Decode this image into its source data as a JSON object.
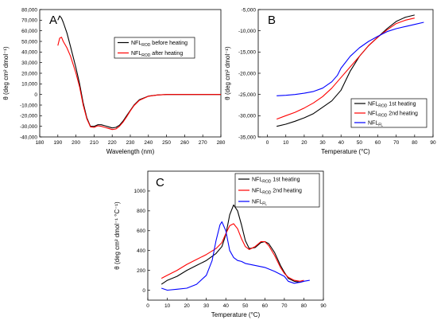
{
  "chart_data": [
    {
      "panel": "A",
      "type": "line",
      "xlabel": "Wavelength (nm)",
      "ylabel": "θ (deg cm² dmol⁻¹)",
      "xlim": [
        180,
        280
      ],
      "ylim": [
        -40000,
        80000
      ],
      "xticks": [
        180,
        190,
        200,
        210,
        220,
        230,
        240,
        250,
        260,
        270,
        280
      ],
      "yticks": [
        -40000,
        -30000,
        -20000,
        -10000,
        0,
        10000,
        20000,
        30000,
        40000,
        50000,
        60000,
        70000,
        80000
      ],
      "ytick_labels": [
        "-40,000",
        "-30,000",
        "-20,000",
        "-10,000",
        "0",
        "10,000",
        "20,000",
        "30,000",
        "40,000",
        "50,000",
        "60,000",
        "70,000",
        "80,000"
      ],
      "legend_position": "top-right",
      "series": [
        {
          "name": "NFL_ROD before heating",
          "label_main": "NFL",
          "label_sub": "ROD",
          "label_suffix": " before heating",
          "color": "#000000",
          "x": [
            190,
            191,
            192,
            193,
            195,
            197,
            200,
            202,
            204,
            206,
            208,
            210,
            212,
            214,
            216,
            218,
            220,
            222,
            224,
            226,
            228,
            230,
            232,
            235,
            240,
            245,
            250,
            260,
            270,
            280
          ],
          "y": [
            70000,
            74000,
            72000,
            68000,
            58000,
            45000,
            25000,
            10000,
            -8000,
            -22000,
            -30000,
            -30000,
            -28500,
            -28500,
            -29500,
            -30500,
            -31500,
            -31000,
            -29000,
            -25000,
            -20000,
            -15000,
            -10000,
            -5000,
            -1500,
            -500,
            0,
            0,
            0,
            0
          ]
        },
        {
          "name": "NFL_ROD after heating",
          "label_main": "NFL",
          "label_sub": "ROD",
          "label_suffix": " after heating",
          "color": "#ff0000",
          "x": [
            190,
            191,
            192,
            193,
            195,
            197,
            200,
            202,
            204,
            206,
            208,
            210,
            212,
            214,
            216,
            218,
            220,
            222,
            224,
            226,
            228,
            230,
            232,
            235,
            240,
            245,
            250,
            260,
            270,
            280
          ],
          "y": [
            46000,
            53000,
            54000,
            50000,
            44000,
            36000,
            20000,
            7000,
            -10000,
            -23000,
            -30500,
            -31000,
            -29500,
            -30000,
            -31000,
            -32000,
            -33000,
            -32500,
            -30000,
            -26000,
            -21000,
            -15500,
            -10500,
            -5500,
            -1700,
            -500,
            0,
            0,
            0,
            0
          ]
        }
      ]
    },
    {
      "panel": "B",
      "type": "line",
      "xlabel": "Temperature (°C)",
      "ylabel": "θ (deg cm² dmol⁻¹)",
      "xlim": [
        -5,
        90
      ],
      "ylim": [
        -35000,
        -5000
      ],
      "xticks": [
        0,
        10,
        20,
        30,
        40,
        50,
        60,
        70,
        80,
        90
      ],
      "yticks": [
        -35000,
        -30000,
        -25000,
        -20000,
        -15000,
        -10000,
        -5000
      ],
      "ytick_labels": [
        "-35,000",
        "-30,000",
        "-25,000",
        "-20,000",
        "-15,000",
        "-10,000",
        "-5,000"
      ],
      "legend_position": "bottom-right",
      "series": [
        {
          "name": "NFL_ROD 1st heating",
          "label_main": "NFL",
          "label_sub": "ROD",
          "label_suffix": "  1st heating",
          "color": "#000000",
          "x": [
            5,
            10,
            15,
            20,
            25,
            30,
            35,
            40,
            45,
            50,
            55,
            60,
            65,
            70,
            75,
            80
          ],
          "y": [
            -32500,
            -32000,
            -31300,
            -30500,
            -29500,
            -28000,
            -26500,
            -24000,
            -19500,
            -16000,
            -13500,
            -11500,
            -9500,
            -7800,
            -6800,
            -6300
          ]
        },
        {
          "name": "NFL_ROD 2nd heating",
          "label_main": "NFL",
          "label_sub": "ROD",
          "label_suffix": "  2nd heating",
          "color": "#ff0000",
          "x": [
            5,
            10,
            15,
            20,
            25,
            30,
            35,
            40,
            45,
            50,
            55,
            60,
            65,
            70,
            75,
            80
          ],
          "y": [
            -30800,
            -30000,
            -29200,
            -28200,
            -27000,
            -25500,
            -23500,
            -21000,
            -18500,
            -16000,
            -13500,
            -11500,
            -9800,
            -8300,
            -7500,
            -7000
          ]
        },
        {
          "name": "NFL_FL",
          "label_main": "NFL",
          "label_sub": "FL",
          "label_suffix": "",
          "color": "#0000ff",
          "x": [
            5,
            10,
            15,
            20,
            25,
            30,
            35,
            38,
            40,
            45,
            50,
            55,
            60,
            65,
            70,
            75,
            80,
            85
          ],
          "y": [
            -25300,
            -25200,
            -25000,
            -24700,
            -24300,
            -23500,
            -22000,
            -20500,
            -18800,
            -16000,
            -14000,
            -12500,
            -11300,
            -10200,
            -9500,
            -9000,
            -8500,
            -8000
          ]
        }
      ]
    },
    {
      "panel": "C",
      "type": "line",
      "xlabel": "Temperature (°C)",
      "ylabel": "θ (deg cm² dmol⁻¹ °C⁻¹)",
      "xlim": [
        0,
        90
      ],
      "ylim": [
        -100,
        1200
      ],
      "xticks": [
        0,
        10,
        20,
        30,
        40,
        50,
        60,
        70,
        80,
        90
      ],
      "yticks": [
        0,
        200,
        400,
        600,
        800,
        1000
      ],
      "ytick_labels": [
        "0",
        "200",
        "400",
        "600",
        "800",
        "1000"
      ],
      "legend_position": "top-right",
      "series": [
        {
          "name": "NFL_ROD 1st heating",
          "label_main": "NFL",
          "label_sub": "ROD",
          "label_suffix": "  1st heating",
          "color": "#000000",
          "x": [
            7,
            10,
            15,
            20,
            25,
            30,
            35,
            38,
            40,
            42,
            44,
            46,
            48,
            50,
            52,
            55,
            58,
            60,
            62,
            65,
            68,
            70,
            72,
            75,
            78,
            80
          ],
          "y": [
            60,
            100,
            140,
            200,
            250,
            300,
            370,
            440,
            560,
            760,
            860,
            800,
            660,
            500,
            420,
            430,
            480,
            490,
            470,
            380,
            250,
            180,
            120,
            90,
            80,
            90
          ]
        },
        {
          "name": "NFL_ROD 2nd heating",
          "label_main": "NFL",
          "label_sub": "ROD",
          "label_suffix": "  2nd heating",
          "color": "#ff0000",
          "x": [
            7,
            10,
            15,
            20,
            25,
            30,
            35,
            38,
            40,
            42,
            44,
            46,
            48,
            50,
            52,
            55,
            58,
            60,
            62,
            65,
            68,
            70,
            72,
            75,
            78,
            80
          ],
          "y": [
            120,
            150,
            200,
            260,
            310,
            360,
            420,
            480,
            570,
            650,
            670,
            620,
            520,
            440,
            410,
            440,
            490,
            490,
            450,
            350,
            230,
            170,
            130,
            100,
            90,
            100
          ]
        },
        {
          "name": "NFL_FL",
          "label_main": "NFL",
          "label_sub": "FL",
          "label_suffix": "",
          "color": "#0000ff",
          "x": [
            7,
            10,
            15,
            20,
            25,
            30,
            33,
            35,
            37,
            38,
            40,
            42,
            44,
            46,
            48,
            50,
            55,
            60,
            65,
            70,
            72,
            75,
            78,
            80,
            83
          ],
          "y": [
            20,
            0,
            10,
            20,
            60,
            150,
            300,
            500,
            660,
            690,
            600,
            400,
            330,
            300,
            290,
            270,
            250,
            230,
            190,
            140,
            90,
            70,
            80,
            90,
            100
          ]
        }
      ]
    }
  ]
}
